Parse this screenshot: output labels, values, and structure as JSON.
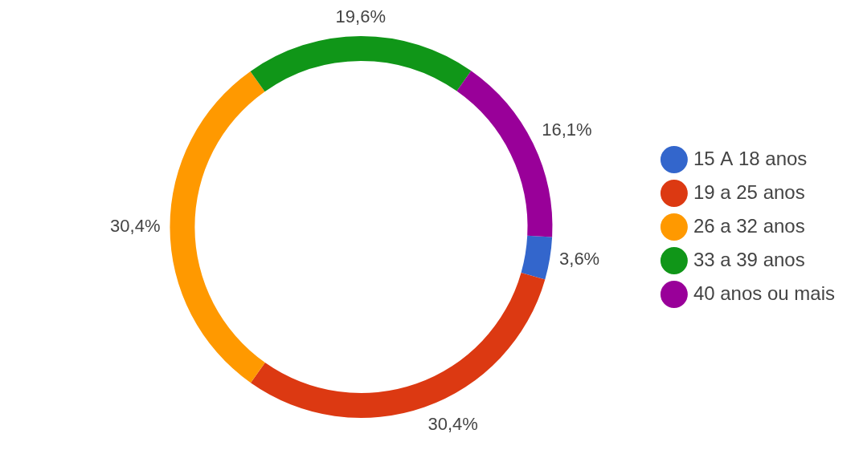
{
  "chart_data": {
    "type": "doughnut",
    "categories": [
      "15 A 18 anos",
      "19 a 25 anos",
      "26 a 32 anos",
      "33 a 39 anos",
      "40 anos ou mais"
    ],
    "values": [
      3.6,
      30.4,
      30.4,
      19.6,
      16.1
    ],
    "value_labels": [
      "3,6%",
      "30,4%",
      "30,4%",
      "19,6%",
      "16,1%"
    ],
    "colors": [
      "#3366cc",
      "#dc3912",
      "#ff9900",
      "#109618",
      "#990099"
    ],
    "data_labels": true,
    "legend": "right"
  }
}
